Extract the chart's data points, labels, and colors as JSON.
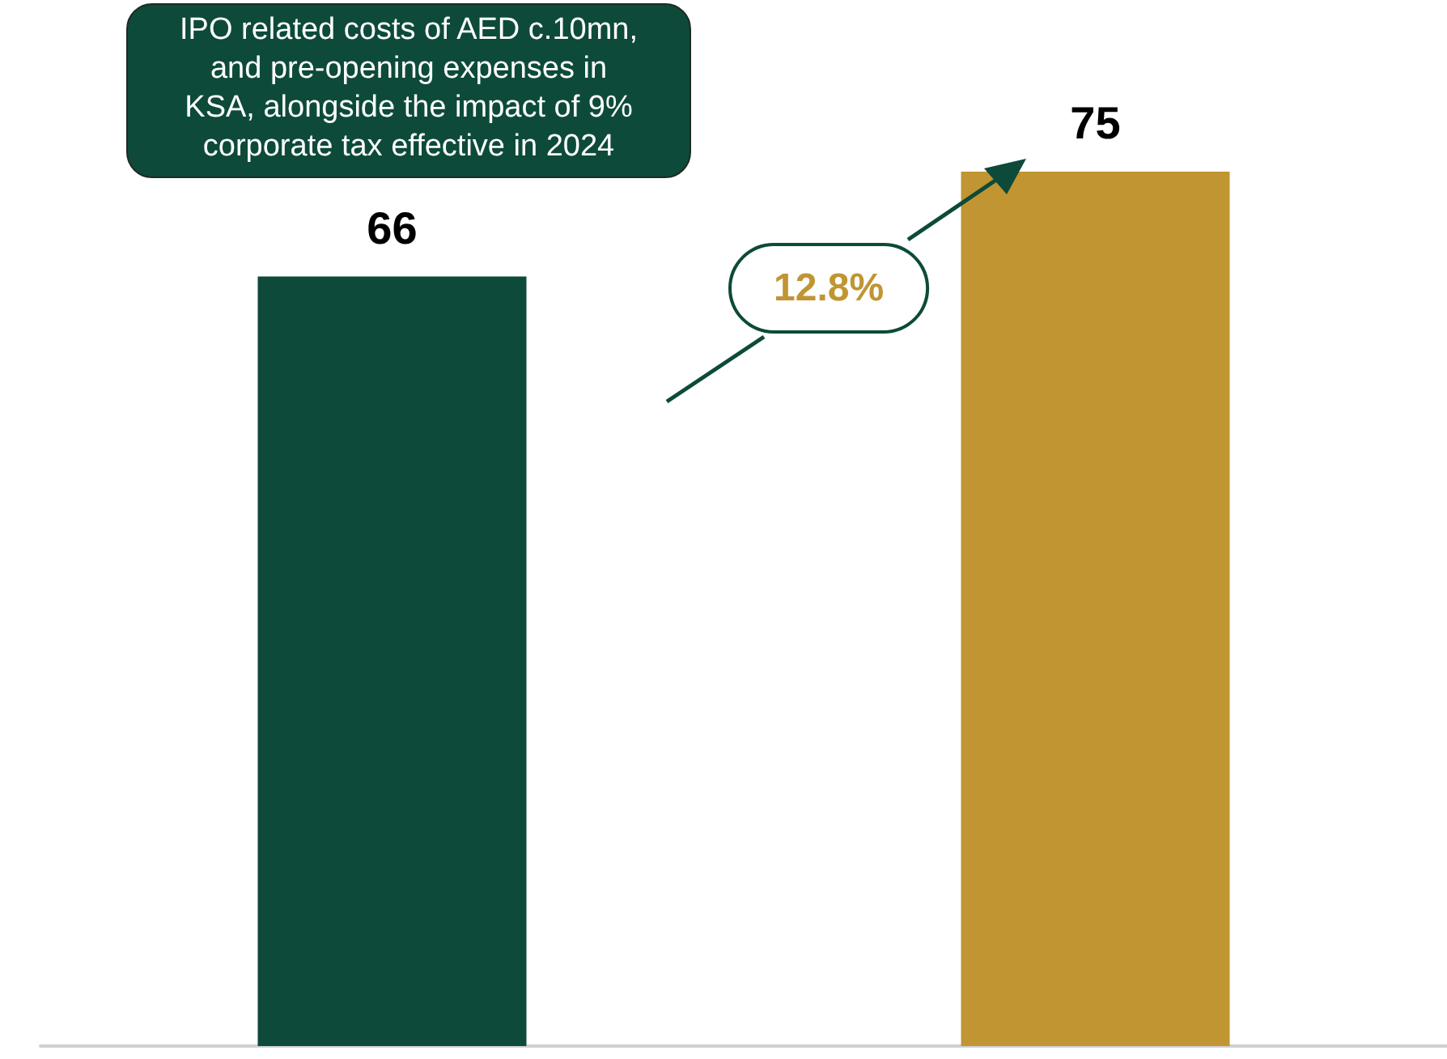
{
  "chart_data": {
    "type": "bar",
    "categories": [
      null,
      null
    ],
    "values": [
      66,
      75
    ],
    "colors": [
      "#0d4a3a",
      "#c09532"
    ],
    "data_labels": true,
    "annotations": [
      "IPO related costs of AED c.10mn,\nand pre-opening expenses in\nKSA, alongside the impact of 9%\ncorporate tax effective in 2024",
      "12.8%"
    ]
  }
}
